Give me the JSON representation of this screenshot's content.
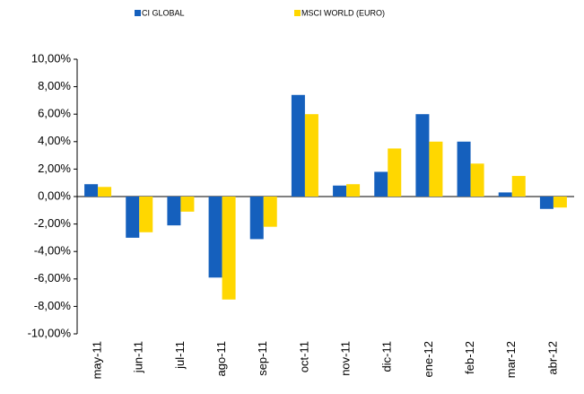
{
  "chart_data": {
    "type": "bar",
    "categories": [
      "may-11",
      "jun-11",
      "jul-11",
      "ago-11",
      "sep-11",
      "oct-11",
      "nov-11",
      "dic-11",
      "ene-12",
      "feb-12",
      "mar-12",
      "abr-12"
    ],
    "series": [
      {
        "name": "CI GLOBAL",
        "color": "#1560bd",
        "values": [
          0.9,
          -3.0,
          -2.1,
          -5.9,
          -3.1,
          7.4,
          0.8,
          1.8,
          6.0,
          4.0,
          0.3,
          -0.9
        ]
      },
      {
        "name": "MSCI WORLD (EURO)",
        "color": "#ffd700",
        "values": [
          0.7,
          -2.6,
          -1.1,
          -7.5,
          -2.2,
          6.0,
          0.9,
          3.5,
          4.0,
          2.4,
          1.5,
          -0.8
        ]
      }
    ],
    "ylim": [
      -10,
      10
    ],
    "yticks": [
      {
        "value": -10,
        "label": "-10,00%"
      },
      {
        "value": -8,
        "label": "-8,00%"
      },
      {
        "value": -6,
        "label": "-6,00%"
      },
      {
        "value": -4,
        "label": "-4,00%"
      },
      {
        "value": -2,
        "label": "-2,00%"
      },
      {
        "value": 0,
        "label": "0,00%"
      },
      {
        "value": 2,
        "label": "2,00%"
      },
      {
        "value": 4,
        "label": "4,00%"
      },
      {
        "value": 6,
        "label": "6,00%"
      },
      {
        "value": 8,
        "label": "8,00%"
      },
      {
        "value": 10,
        "label": "10,00%"
      }
    ],
    "legend": "top",
    "grid": false
  }
}
